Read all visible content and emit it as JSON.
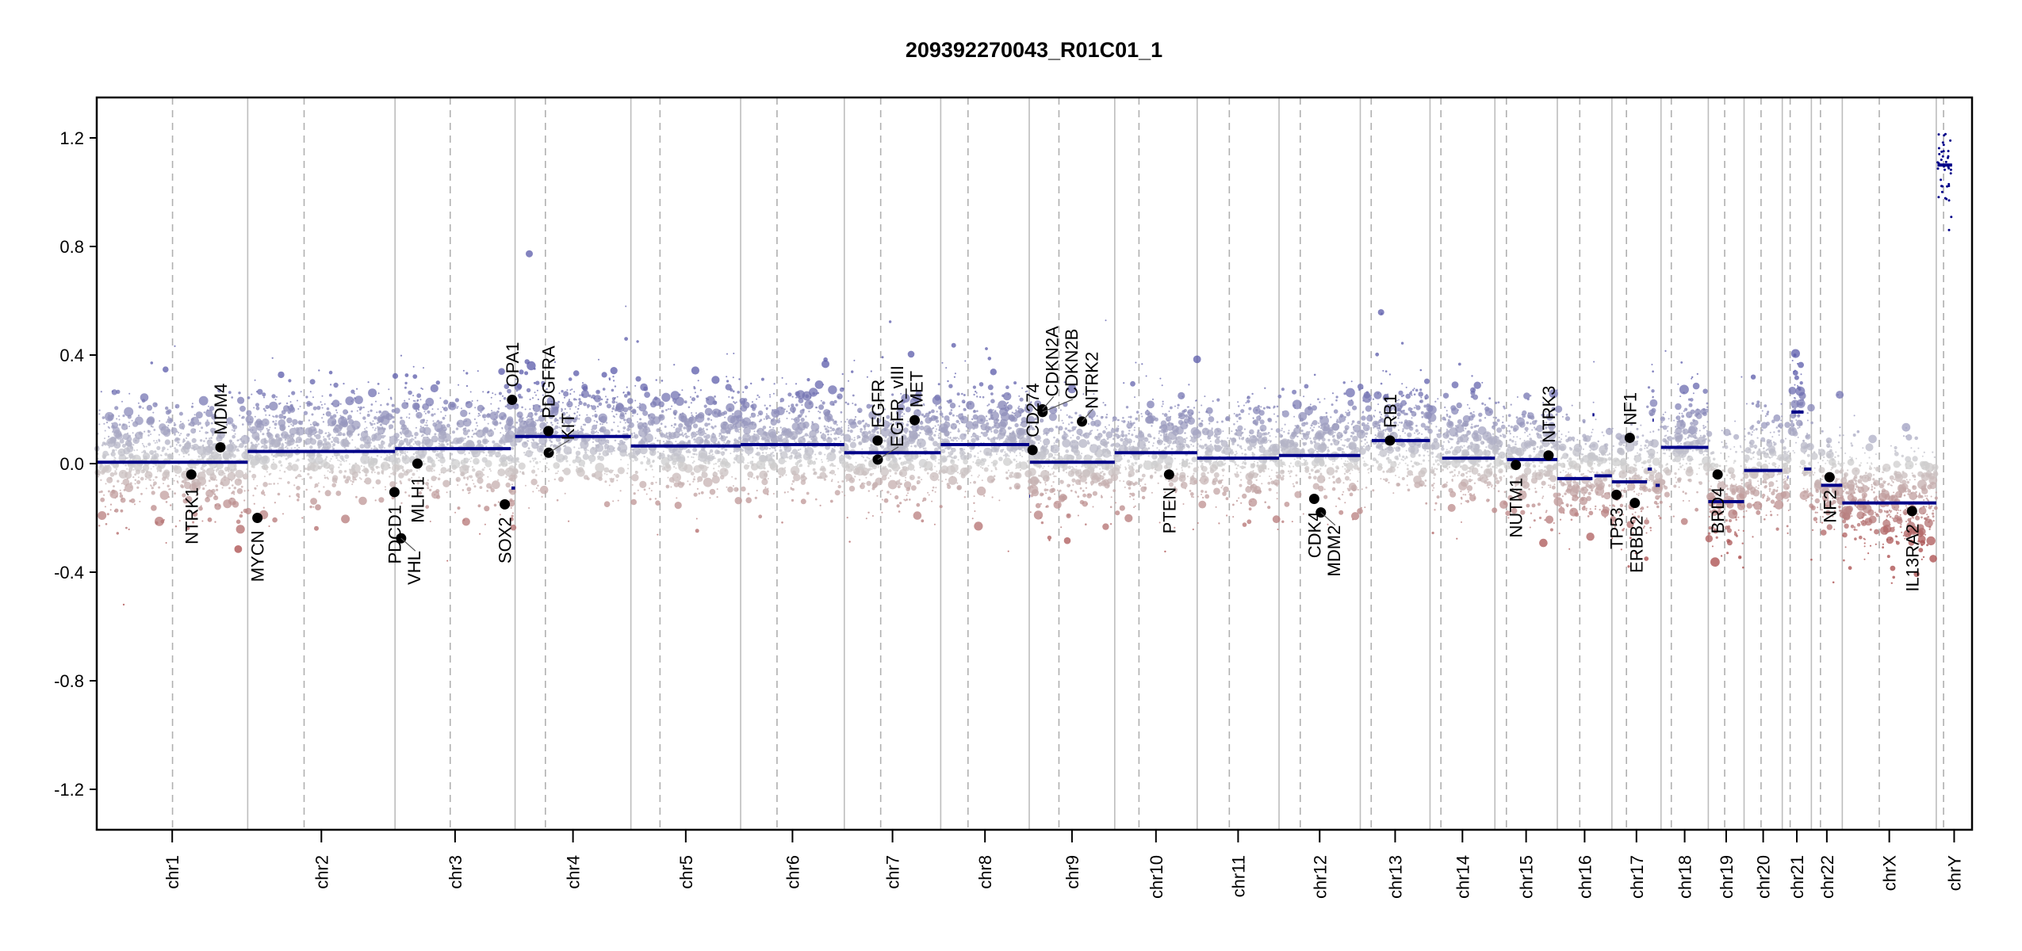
{
  "chart_data": {
    "type": "scatter",
    "title": "209392270043_R01C01_1",
    "xlabel": "",
    "ylabel": "",
    "ylim": [
      -1.35,
      1.35
    ],
    "yticks": [
      "1.2",
      "0.8",
      "0.4",
      "0.0",
      "-0.4",
      "-0.8",
      "-1.2"
    ],
    "ytick_values": [
      1.2,
      0.8,
      0.4,
      0.0,
      -0.4,
      -0.8,
      -1.2
    ],
    "grid": false,
    "chromosomes": [
      {
        "name": "chr1",
        "length_mb": 249,
        "centromere_mb": 125
      },
      {
        "name": "chr2",
        "length_mb": 243,
        "centromere_mb": 93
      },
      {
        "name": "chr3",
        "length_mb": 198,
        "centromere_mb": 91
      },
      {
        "name": "chr4",
        "length_mb": 191,
        "centromere_mb": 50
      },
      {
        "name": "chr5",
        "length_mb": 181,
        "centromere_mb": 48
      },
      {
        "name": "chr6",
        "length_mb": 171,
        "centromere_mb": 60
      },
      {
        "name": "chr7",
        "length_mb": 159,
        "centromere_mb": 60
      },
      {
        "name": "chr8",
        "length_mb": 146,
        "centromere_mb": 45
      },
      {
        "name": "chr9",
        "length_mb": 141,
        "centromere_mb": 49
      },
      {
        "name": "chr10",
        "length_mb": 136,
        "centromere_mb": 40
      },
      {
        "name": "chr11",
        "length_mb": 135,
        "centromere_mb": 53
      },
      {
        "name": "chr12",
        "length_mb": 134,
        "centromere_mb": 35
      },
      {
        "name": "chr13",
        "length_mb": 115,
        "centromere_mb": 18
      },
      {
        "name": "chr14",
        "length_mb": 107,
        "centromere_mb": 18
      },
      {
        "name": "chr15",
        "length_mb": 103,
        "centromere_mb": 19
      },
      {
        "name": "chr16",
        "length_mb": 90,
        "centromere_mb": 37
      },
      {
        "name": "chr17",
        "length_mb": 81,
        "centromere_mb": 24
      },
      {
        "name": "chr18",
        "length_mb": 78,
        "centromere_mb": 17
      },
      {
        "name": "chr19",
        "length_mb": 59,
        "centromere_mb": 27
      },
      {
        "name": "chr20",
        "length_mb": 63,
        "centromere_mb": 28
      },
      {
        "name": "chr21",
        "length_mb": 48,
        "centromere_mb": 13
      },
      {
        "name": "chr22",
        "length_mb": 51,
        "centromere_mb": 15
      },
      {
        "name": "chrX",
        "length_mb": 155,
        "centromere_mb": 61
      },
      {
        "name": "chrY",
        "length_mb": 59,
        "centromere_mb": 12
      }
    ],
    "segments": [
      {
        "chr": "chr1",
        "start": 0,
        "end": 249,
        "value": 0.005
      },
      {
        "chr": "chr2",
        "start": 0,
        "end": 243,
        "value": 0.045
      },
      {
        "chr": "chr3",
        "start": 0,
        "end": 191,
        "value": 0.055
      },
      {
        "chr": "chr3",
        "start": 192,
        "end": 198,
        "value": -0.09
      },
      {
        "chr": "chr4",
        "start": 0,
        "end": 191,
        "value": 0.1
      },
      {
        "chr": "chr5",
        "start": 0,
        "end": 181,
        "value": 0.065
      },
      {
        "chr": "chr6",
        "start": 0,
        "end": 171,
        "value": 0.07
      },
      {
        "chr": "chr7",
        "start": 0,
        "end": 159,
        "value": 0.04
      },
      {
        "chr": "chr8",
        "start": 0,
        "end": 146,
        "value": 0.07
      },
      {
        "chr": "chr9",
        "start": 0,
        "end": 1,
        "value": -0.12
      },
      {
        "chr": "chr9",
        "start": 1,
        "end": 141,
        "value": 0.005
      },
      {
        "chr": "chr10",
        "start": 0,
        "end": 136,
        "value": 0.04
      },
      {
        "chr": "chr11",
        "start": 0,
        "end": 135,
        "value": 0.02
      },
      {
        "chr": "chr12",
        "start": 0,
        "end": 134,
        "value": 0.03
      },
      {
        "chr": "chr13",
        "start": 19,
        "end": 115,
        "value": 0.085
      },
      {
        "chr": "chr14",
        "start": 20,
        "end": 107,
        "value": 0.02
      },
      {
        "chr": "chr15",
        "start": 20,
        "end": 103,
        "value": 0.015
      },
      {
        "chr": "chr16",
        "start": 0,
        "end": 58,
        "value": -0.055
      },
      {
        "chr": "chr16",
        "start": 58,
        "end": 61,
        "value": 0.18
      },
      {
        "chr": "chr16",
        "start": 61,
        "end": 90,
        "value": -0.045
      },
      {
        "chr": "chr17",
        "start": 0,
        "end": 58,
        "value": -0.067
      },
      {
        "chr": "chr17",
        "start": 59,
        "end": 66,
        "value": -0.02
      },
      {
        "chr": "chr17",
        "start": 67,
        "end": 69,
        "value": 0.16
      },
      {
        "chr": "chr17",
        "start": 72,
        "end": 79,
        "value": -0.08
      },
      {
        "chr": "chr18",
        "start": 0,
        "end": 78,
        "value": 0.06
      },
      {
        "chr": "chr19",
        "start": 0,
        "end": 59,
        "value": -0.14
      },
      {
        "chr": "chr20",
        "start": 0,
        "end": 63,
        "value": -0.025
      },
      {
        "chr": "chr21",
        "start": 9,
        "end": 10,
        "value": -0.05
      },
      {
        "chr": "chr21",
        "start": 15,
        "end": 35,
        "value": 0.19
      },
      {
        "chr": "chr21",
        "start": 36,
        "end": 48,
        "value": -0.02
      },
      {
        "chr": "chr22",
        "start": 16,
        "end": 51,
        "value": -0.08
      },
      {
        "chr": "chrX",
        "start": 0,
        "end": 155,
        "value": -0.145
      },
      {
        "chr": "chrY",
        "start": 2,
        "end": 26,
        "value": 1.1
      }
    ],
    "genes": [
      {
        "name": "NTRK1",
        "chr": "chr1",
        "pos": 156,
        "value": -0.04
      },
      {
        "name": "MDM4",
        "chr": "chr1",
        "pos": 204,
        "value": 0.06
      },
      {
        "name": "MYCN",
        "chr": "chr2",
        "pos": 16,
        "value": -0.2
      },
      {
        "name": "PDCD1",
        "chr": "chr2",
        "pos": 242,
        "value": -0.105
      },
      {
        "name": "VHL",
        "chr": "chr3",
        "pos": 10,
        "value": -0.275
      },
      {
        "name": "MLH1",
        "chr": "chr3",
        "pos": 37,
        "value": 0.0
      },
      {
        "name": "SOX2",
        "chr": "chr3",
        "pos": 181,
        "value": -0.15
      },
      {
        "name": "OPA1",
        "chr": "chr3",
        "pos": 193,
        "value": 0.235
      },
      {
        "name": "PDGFRA",
        "chr": "chr4",
        "pos": 55,
        "value": 0.12
      },
      {
        "name": "KIT",
        "chr": "chr4",
        "pos": 55.5,
        "value": 0.04
      },
      {
        "name": "EGFR",
        "chr": "chr7",
        "pos": 55,
        "value": 0.085
      },
      {
        "name": "EGFR_vIII",
        "chr": "chr7",
        "pos": 55.2,
        "value": 0.015
      },
      {
        "name": "MET",
        "chr": "chr7",
        "pos": 116,
        "value": 0.16
      },
      {
        "name": "CD274",
        "chr": "chr9",
        "pos": 5.5,
        "value": 0.05
      },
      {
        "name": "CDKN2A",
        "chr": "chr9",
        "pos": 21.9,
        "value": 0.2
      },
      {
        "name": "CDKN2B",
        "chr": "chr9",
        "pos": 22.0,
        "value": 0.19
      },
      {
        "name": "NTRK2",
        "chr": "chr9",
        "pos": 87,
        "value": 0.155
      },
      {
        "name": "PTEN",
        "chr": "chr10",
        "pos": 89.6,
        "value": -0.04
      },
      {
        "name": "CDK4",
        "chr": "chr12",
        "pos": 58,
        "value": -0.13
      },
      {
        "name": "MDM2",
        "chr": "chr12",
        "pos": 69,
        "value": -0.18
      },
      {
        "name": "RB1",
        "chr": "chr13",
        "pos": 49,
        "value": 0.085
      },
      {
        "name": "NUTM1",
        "chr": "chr15",
        "pos": 34.6,
        "value": -0.005
      },
      {
        "name": "NTRK3",
        "chr": "chr15",
        "pos": 88.5,
        "value": 0.03
      },
      {
        "name": "TP53",
        "chr": "chr17",
        "pos": 7.5,
        "value": -0.115
      },
      {
        "name": "NF1",
        "chr": "chr17",
        "pos": 29.5,
        "value": 0.095
      },
      {
        "name": "ERBB2",
        "chr": "chr17",
        "pos": 37.8,
        "value": -0.145
      },
      {
        "name": "BRD4",
        "chr": "chr19",
        "pos": 15.4,
        "value": -0.04
      },
      {
        "name": "NF2",
        "chr": "chr22",
        "pos": 30,
        "value": -0.05
      },
      {
        "name": "IL13RA2",
        "chr": "chrX",
        "pos": 115,
        "value": -0.175
      }
    ],
    "colors": {
      "segment": "#000088",
      "gain": "#5a5aaa",
      "neutral": "#cfcfcf",
      "loss": "#a84848",
      "gene_point": "#000000",
      "chr_boundary": "#bdbdbd",
      "centromere": "#b0b0b0"
    }
  }
}
